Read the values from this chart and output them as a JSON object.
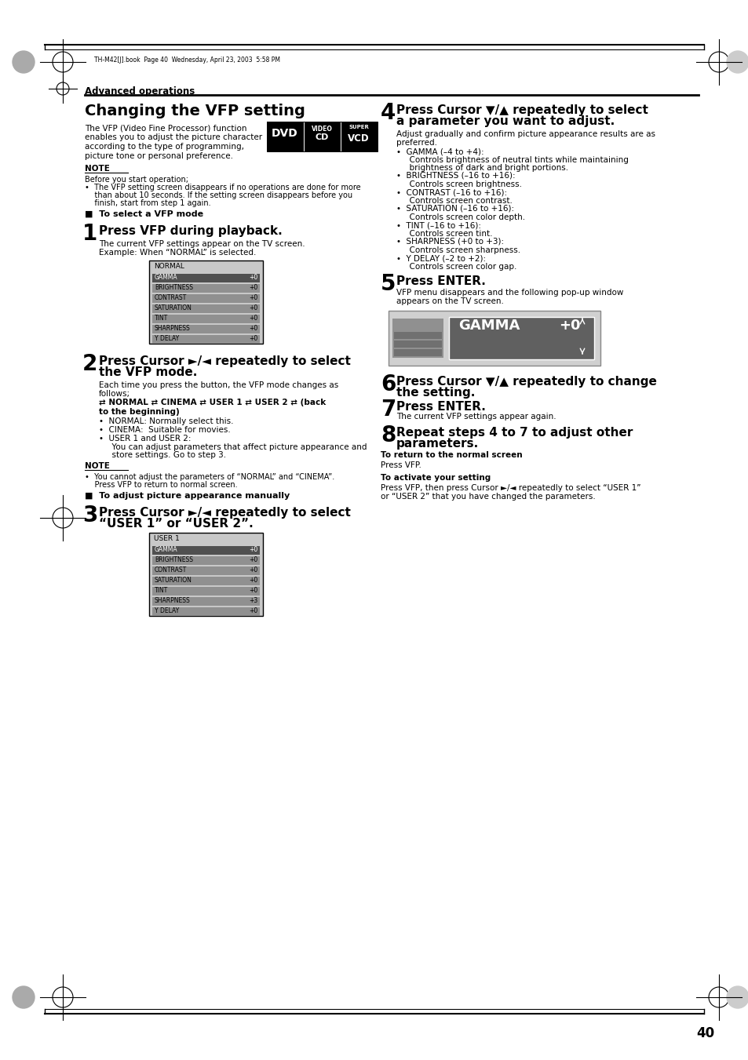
{
  "page_bg": "#ffffff",
  "page_num": "40",
  "header_text": "TH-M42[J].book  Page 40  Wednesday, April 23, 2003  5:58 PM",
  "section_title": "Advanced operations",
  "chapter_title": "Changing the VFP setting",
  "intro_text_lines": [
    "The VFP (Video Fine Processor) function",
    "enables you to adjust the picture character",
    "according to the type of programming,",
    "picture tone or personal preference."
  ],
  "note_label": "NOTE",
  "note_text_lines": [
    "Before you start operation;",
    "•  The VFP setting screen disappears if no operations are done for more",
    "    than about 10 seconds. If the setting screen disappears before you",
    "    finish, start from step 1 again."
  ],
  "subsection1": "■  To select a VFP mode",
  "step1_num": "1",
  "step1_text": "Press VFP during playback.",
  "step1_sub_lines": [
    "The current VFP settings appear on the TV screen.",
    "Example: When “NORMAL” is selected."
  ],
  "screen1_title": "NORMAL",
  "screen1_rows": [
    "GAMMA",
    "BRIGHTNESS",
    "CONTRAST",
    "SATURATION",
    "TINT",
    "SHARPNESS",
    "Y DELAY"
  ],
  "screen1_vals": [
    "+0",
    "+0",
    "+0",
    "+0",
    "+0",
    "+0",
    "+0"
  ],
  "step2_num": "2",
  "step2_text": "Press Cursor ►/◄ repeatedly to select\nthe VFP mode.",
  "step2_sub_lines": [
    "Each time you press the button, the VFP mode changes as",
    "follows;"
  ],
  "step2_modes_lines": [
    "⇄ NORMAL ⇄ CINEMA ⇄ USER 1 ⇄ USER 2 ⇄ (back",
    "to the beginning)"
  ],
  "step2_bullets": [
    [
      "NORMAL: Normally select this."
    ],
    [
      "CINEMA:  Suitable for movies."
    ],
    [
      "USER 1 and USER 2:",
      "  You can adjust parameters that affect picture appearance and",
      "  store settings. Go to step 3."
    ]
  ],
  "note2_label": "NOTE",
  "note2_text_lines": [
    "•  You cannot adjust the parameters of “NORMAL” and “CINEMA”.",
    "    Press VFP to return to normal screen."
  ],
  "subsection2": "■  To adjust picture appearance manually",
  "step3_num": "3",
  "step3_text": "Press Cursor ►/◄ repeatedly to select\n“USER 1” or “USER 2”.",
  "screen2_title": "USER 1",
  "screen2_rows": [
    "GAMMA",
    "BRIGHTNESS",
    "CONTRAST",
    "SATURATION",
    "TINT",
    "SHARPNESS",
    "Y DELAY"
  ],
  "screen2_vals": [
    "+0",
    "+0",
    "+0",
    "+0",
    "+0",
    "+3",
    "+0"
  ],
  "col2_step4_num": "4",
  "col2_step4_text": "Press Cursor ▼/▲ repeatedly to select\na parameter you want to adjust.",
  "col2_step4_sub_lines": [
    "Adjust gradually and confirm picture appearance results are as",
    "preferred."
  ],
  "col2_step4_bullets": [
    [
      "GAMMA (–4 to +4):",
      "  Controls brightness of neutral tints while maintaining",
      "  brightness of dark and bright portions."
    ],
    [
      "BRIGHTNESS (–16 to +16):",
      "  Controls screen brightness."
    ],
    [
      "CONTRAST (–16 to +16):",
      "  Controls screen contrast."
    ],
    [
      "SATURATION (–16 to +16):",
      "  Controls screen color depth."
    ],
    [
      "TINT (–16 to +16):",
      "  Controls screen tint."
    ],
    [
      "SHARPNESS (+0 to +3):",
      "  Controls screen sharpness."
    ],
    [
      "Y DELAY (–2 to +2):",
      "  Controls screen color gap."
    ]
  ],
  "col2_step5_num": "5",
  "col2_step5_text": "Press ENTER.",
  "col2_step5_sub_lines": [
    "VFP menu disappears and the following pop-up window",
    "appears on the TV screen."
  ],
  "gamma_screen_text": "GAMMA",
  "gamma_screen_val": "+0",
  "col2_step6_num": "6",
  "col2_step6_text": "Press Cursor ▼/▲ repeatedly to change\nthe setting.",
  "col2_step7_num": "7",
  "col2_step7_text": "Press ENTER.",
  "col2_step7_sub": "The current VFP settings appear again.",
  "col2_step8_num": "8",
  "col2_step8_text": "Repeat steps 4 to 7 to adjust other\nparameters.",
  "return_title": "To return to the normal screen",
  "return_text": "Press VFP.",
  "activate_title": "To activate your setting",
  "activate_text_lines": [
    "Press VFP, then press Cursor ►/◄ repeatedly to select “USER 1”",
    "or “USER 2” that you have changed the parameters."
  ]
}
